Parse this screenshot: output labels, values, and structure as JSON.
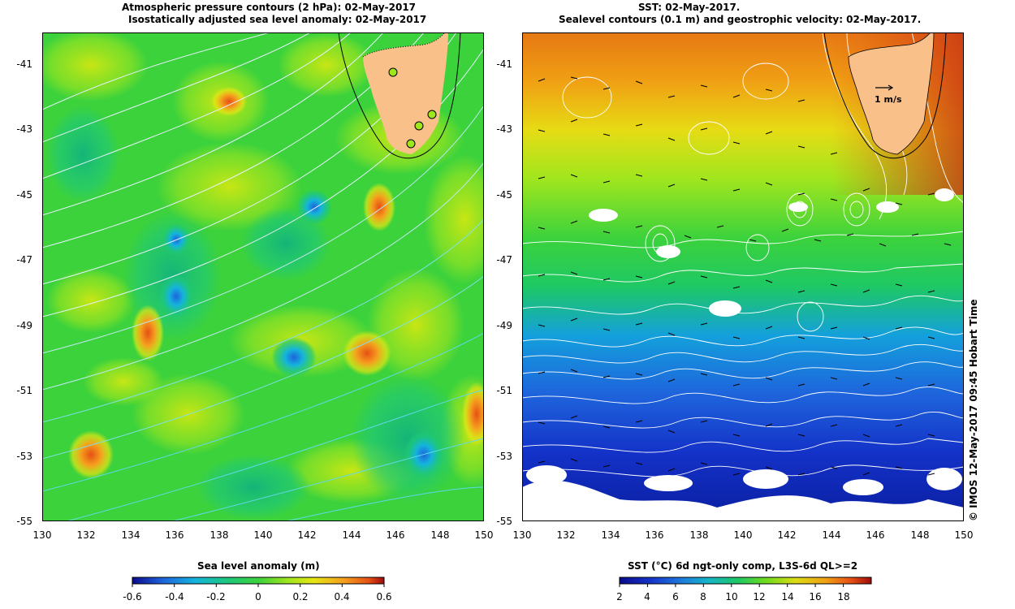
{
  "left_panel": {
    "title_line1": "Atmospheric pressure contours (2 hPa): 02-May-2017",
    "title_line2": "Isostatically adjusted sea level anomaly: 02-May-2017",
    "x_ticks": [
      "130",
      "132",
      "134",
      "136",
      "138",
      "140",
      "142",
      "144",
      "146",
      "148",
      "150"
    ],
    "y_ticks": [
      "-41",
      "-43",
      "-45",
      "-47",
      "-49",
      "-51",
      "-53",
      "-55"
    ],
    "colorbar_label": "Sea level anomaly (m)",
    "colorbar_ticks": [
      "-0.6",
      "-0.4",
      "-0.2",
      "0",
      "0.2",
      "0.4",
      "0.6"
    ]
  },
  "right_panel": {
    "title_line1": "SST: 02-May-2017.",
    "title_line2": "Sealevel contours (0.1 m) and geostrophic velocity: 02-May-2017.",
    "x_ticks": [
      "130",
      "132",
      "134",
      "136",
      "138",
      "140",
      "142",
      "144",
      "146",
      "148",
      "150"
    ],
    "y_ticks": [
      "-41",
      "-43",
      "-45",
      "-47",
      "-49",
      "-51",
      "-53",
      "-55"
    ],
    "velocity_scale_label": "1 m/s",
    "colorbar_label": "SST (°C) 6d ngt-only comp, L3S-6d QL>=2",
    "colorbar_ticks": [
      "2",
      "4",
      "6",
      "8",
      "10",
      "12",
      "14",
      "16",
      "18"
    ]
  },
  "credit": "© IMOS 12-May-2017 09:45 Hobart Time",
  "colors": {
    "land": "#f9c08a",
    "sla_scale": [
      "#0a0a8c",
      "#1e64dc",
      "#14b4dc",
      "#1ec87a",
      "#3cd23c",
      "#a0e61e",
      "#e6e614",
      "#f5a01e",
      "#e65014",
      "#a00a0a"
    ],
    "sst_scale": [
      "#0a0a8c",
      "#1432c8",
      "#1e78dc",
      "#14b4c8",
      "#1ec864",
      "#6edc1e",
      "#dcdc14",
      "#f0a014",
      "#e65014",
      "#a00a0a"
    ]
  }
}
